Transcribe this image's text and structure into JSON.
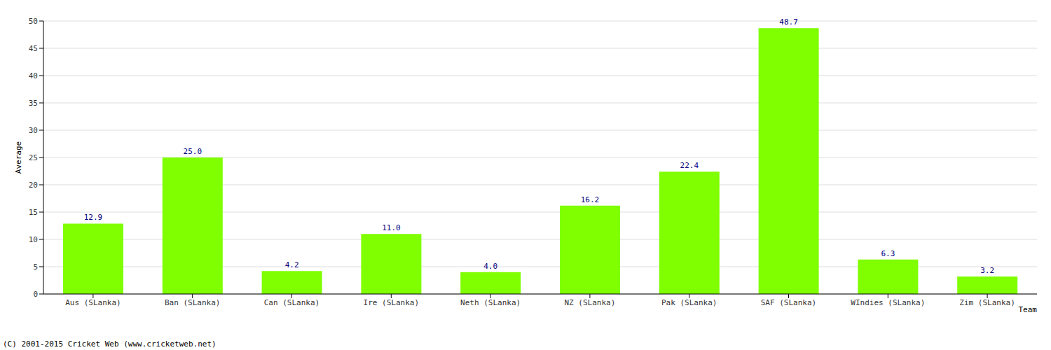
{
  "chart_data": {
    "type": "bar",
    "categories": [
      "Aus (SLanka)",
      "Ban (SLanka)",
      "Can (SLanka)",
      "Ire (SLanka)",
      "Neth (SLanka)",
      "NZ (SLanka)",
      "Pak (SLanka)",
      "SAF (SLanka)",
      "WIndies (SLanka)",
      "Zim (SLanka)"
    ],
    "values": [
      12.9,
      25.0,
      4.2,
      11.0,
      4.0,
      16.2,
      22.4,
      48.7,
      6.3,
      3.2
    ],
    "value_labels": [
      "12.9",
      "25.0",
      "4.2",
      "11.0",
      "4.0",
      "16.2",
      "22.4",
      "48.7",
      "6.3",
      "3.2"
    ],
    "data_labels": true,
    "color": "#7fff00",
    "x_label": "Team",
    "y_label": "Average",
    "ylim": [
      0,
      50
    ],
    "yticks": [
      0,
      5,
      10,
      15,
      20,
      25,
      30,
      35,
      40,
      45,
      50
    ],
    "grid": true,
    "annotations": [
      "(C) 2001-2015 Cricket Web (www.cricketweb.net)"
    ]
  }
}
